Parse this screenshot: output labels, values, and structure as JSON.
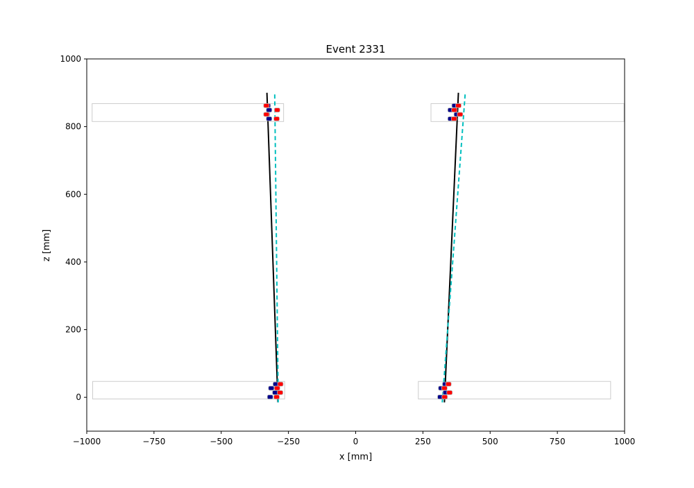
{
  "chart_data": {
    "type": "scatter",
    "title": "Event 2331",
    "xlabel": "x [mm]",
    "ylabel": "z [mm]",
    "xlim": [
      -1000,
      1000
    ],
    "ylim": [
      -100,
      1000
    ],
    "xticks": [
      -1000,
      -750,
      -500,
      -250,
      0,
      250,
      500,
      750,
      1000
    ],
    "xtick_labels": [
      "−1000",
      "−750",
      "−500",
      "−250",
      "0",
      "250",
      "500",
      "750",
      "1000"
    ],
    "yticks": [
      0,
      200,
      400,
      600,
      800,
      1000
    ],
    "ytick_labels": [
      "0",
      "200",
      "400",
      "600",
      "800",
      "1000"
    ],
    "grid": false,
    "legend": "none",
    "colors": {
      "module_outline": "#cccccc",
      "hit_blue": "#00008b",
      "hit_red": "#ff0000",
      "fit_line": "#000000",
      "true_line": "#00bfbf"
    },
    "modules": [
      {
        "x0": -980,
        "x1": -268,
        "z0": 815,
        "z1": 868
      },
      {
        "x0": 280,
        "x1": 998,
        "z0": 815,
        "z1": 868
      },
      {
        "x0": -978,
        "x1": -264,
        "z0": -5,
        "z1": 47
      },
      {
        "x0": 233,
        "x1": 948,
        "z0": -5,
        "z1": 47
      }
    ],
    "hits_blue": [
      [
        -327,
        862
      ],
      [
        -322,
        849
      ],
      [
        -330,
        836
      ],
      [
        -322,
        823
      ],
      [
        -297,
        39
      ],
      [
        -314,
        27
      ],
      [
        -299,
        14
      ],
      [
        -318,
        1
      ],
      [
        368,
        862
      ],
      [
        353,
        849
      ],
      [
        376,
        836
      ],
      [
        353,
        823
      ],
      [
        333,
        39
      ],
      [
        318,
        27
      ],
      [
        335,
        14
      ],
      [
        315,
        1
      ]
    ],
    "hits_red": [
      [
        -332,
        862
      ],
      [
        -292,
        849
      ],
      [
        -332,
        836
      ],
      [
        -294,
        823
      ],
      [
        -280,
        39
      ],
      [
        -292,
        27
      ],
      [
        -281,
        14
      ],
      [
        -294,
        1
      ],
      [
        382,
        862
      ],
      [
        367,
        849
      ],
      [
        388,
        836
      ],
      [
        366,
        823
      ],
      [
        345,
        39
      ],
      [
        330,
        27
      ],
      [
        349,
        14
      ],
      [
        331,
        1
      ]
    ],
    "fit_lines": [
      {
        "x": [
          -330,
          -289
        ],
        "z": [
          900,
          -15
        ]
      },
      {
        "x": [
          382,
          330
        ],
        "z": [
          900,
          -15
        ]
      }
    ],
    "true_lines": [
      {
        "x": [
          -301,
          -288
        ],
        "z": [
          895,
          -15
        ]
      },
      {
        "x": [
          407,
          322
        ],
        "z": [
          895,
          -15
        ]
      }
    ]
  }
}
